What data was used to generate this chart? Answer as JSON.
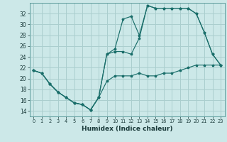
{
  "title": "",
  "xlabel": "Humidex (Indice chaleur)",
  "xlim": [
    -0.5,
    23.5
  ],
  "ylim": [
    13,
    34
  ],
  "yticks": [
    14,
    16,
    18,
    20,
    22,
    24,
    26,
    28,
    30,
    32
  ],
  "xticks": [
    0,
    1,
    2,
    3,
    4,
    5,
    6,
    7,
    8,
    9,
    10,
    11,
    12,
    13,
    14,
    15,
    16,
    17,
    18,
    19,
    20,
    21,
    22,
    23
  ],
  "bg_color": "#cce8e8",
  "grid_color": "#aacece",
  "line_color": "#1a6e6a",
  "line1_x": [
    0,
    1,
    2,
    3,
    4,
    5,
    6,
    7,
    8,
    9,
    10,
    11,
    12,
    13,
    14,
    15,
    16,
    17,
    18,
    19,
    20,
    21,
    22,
    23
  ],
  "line1_y": [
    21.5,
    21.0,
    19.0,
    17.5,
    16.5,
    15.5,
    15.2,
    14.2,
    16.5,
    19.5,
    20.5,
    20.5,
    20.5,
    21.0,
    20.5,
    20.5,
    21.0,
    21.0,
    21.5,
    22.0,
    22.5,
    22.5,
    22.5,
    22.5
  ],
  "line2_x": [
    0,
    1,
    2,
    3,
    4,
    5,
    6,
    7,
    8,
    9,
    10,
    11,
    12,
    13,
    14,
    15,
    16,
    17,
    18,
    19,
    20,
    21,
    22,
    23
  ],
  "line2_y": [
    21.5,
    21.0,
    19.0,
    17.5,
    16.5,
    15.5,
    15.2,
    14.2,
    16.5,
    24.5,
    25.5,
    31.0,
    31.5,
    28.0,
    33.5,
    33.0,
    33.0,
    33.0,
    33.0,
    33.0,
    32.0,
    28.5,
    24.5,
    22.5
  ],
  "line3_x": [
    0,
    1,
    2,
    3,
    4,
    5,
    6,
    7,
    8,
    9,
    10,
    11,
    12,
    13,
    14,
    15,
    16,
    17,
    18,
    19,
    20,
    21,
    22,
    23
  ],
  "line3_y": [
    21.5,
    21.0,
    19.0,
    17.5,
    16.5,
    15.5,
    15.2,
    14.2,
    16.5,
    24.5,
    25.0,
    25.0,
    24.5,
    27.5,
    33.5,
    33.0,
    33.0,
    33.0,
    33.0,
    33.0,
    32.0,
    28.5,
    24.5,
    22.5
  ]
}
